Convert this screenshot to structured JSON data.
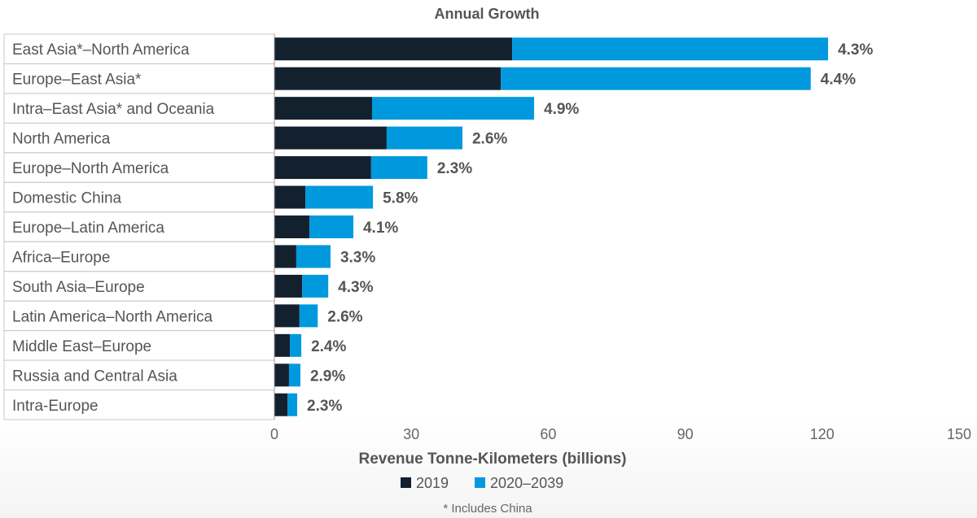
{
  "chart_data": {
    "type": "bar",
    "orientation": "horizontal",
    "stacked": true,
    "title": "Annual Growth",
    "xlabel": "Revenue Tonne-Kilometers (billions)",
    "xlim": [
      0,
      150
    ],
    "xticks": [
      "0",
      "30",
      "60",
      "90",
      "120",
      "150"
    ],
    "footnote": "* Includes China",
    "legend_position": "bottom",
    "categories": [
      "East Asia*–North America",
      "Europe–East Asia*",
      "Intra–East Asia* and Oceania",
      "North America",
      "Europe–North America",
      "Domestic China",
      "Europe–Latin America",
      "Africa–Europe",
      "South Asia–Europe",
      "Latin America–North America",
      "Middle East–Europe",
      "Russia and Central Asia",
      "Intra-Europe"
    ],
    "series": [
      {
        "name": "2019",
        "color": "#13212f",
        "values": [
          52.1,
          49.6,
          21.4,
          24.6,
          21.2,
          6.8,
          7.7,
          4.8,
          6.1,
          5.5,
          3.4,
          3.2,
          2.9
        ]
      },
      {
        "name": "2020–2039",
        "color": "#0099dd",
        "values": [
          69.2,
          67.9,
          35.5,
          16.6,
          12.3,
          14.8,
          9.6,
          7.5,
          5.7,
          4.0,
          2.5,
          2.5,
          2.1
        ]
      }
    ],
    "growth_labels": [
      "4.3%",
      "4.4%",
      "4.9%",
      "2.6%",
      "2.3%",
      "5.8%",
      "4.1%",
      "3.3%",
      "4.3%",
      "2.6%",
      "2.4%",
      "2.9%",
      "2.3%"
    ]
  }
}
